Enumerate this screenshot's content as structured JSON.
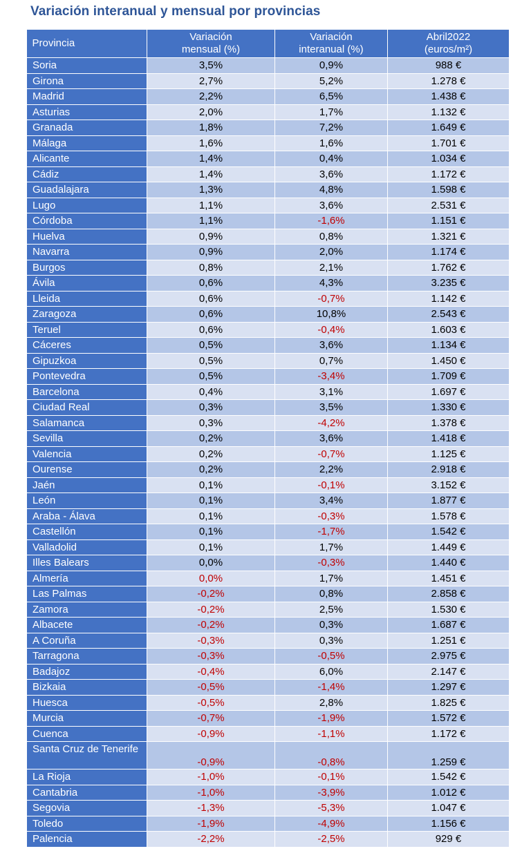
{
  "title": "Variación interanual y mensual por provincias",
  "colors": {
    "header": "#4472c4",
    "row_odd": "#b4c6e7",
    "row_even": "#d9e1f2",
    "negative": "#c00000",
    "title": "#2e5597"
  },
  "headers": {
    "provincia": "Provincia",
    "mensual_l1": "Variación",
    "mensual_l2": "mensual (%)",
    "interanual_l1": "Variación",
    "interanual_l2": "interanual (%)",
    "precio_l1": "Abril2022",
    "precio_l2": "(euros/m²)"
  },
  "rows": [
    {
      "provincia": "Soria",
      "mensual": "3,5%",
      "interanual": "0,9%",
      "precio": "988 €"
    },
    {
      "provincia": "Girona",
      "mensual": "2,7%",
      "interanual": "5,2%",
      "precio": "1.278 €"
    },
    {
      "provincia": "Madrid",
      "mensual": "2,2%",
      "interanual": "6,5%",
      "precio": "1.438 €"
    },
    {
      "provincia": "Asturias",
      "mensual": "2,0%",
      "interanual": "1,7%",
      "precio": "1.132 €"
    },
    {
      "provincia": "Granada",
      "mensual": "1,8%",
      "interanual": "7,2%",
      "precio": "1.649 €"
    },
    {
      "provincia": "Málaga",
      "mensual": "1,6%",
      "interanual": "1,6%",
      "precio": "1.701 €"
    },
    {
      "provincia": "Alicante",
      "mensual": "1,4%",
      "interanual": "0,4%",
      "precio": "1.034 €"
    },
    {
      "provincia": "Cádiz",
      "mensual": "1,4%",
      "interanual": "3,6%",
      "precio": "1.172 €"
    },
    {
      "provincia": "Guadalajara",
      "mensual": "1,3%",
      "interanual": "4,8%",
      "precio": "1.598 €"
    },
    {
      "provincia": "Lugo",
      "mensual": "1,1%",
      "interanual": "3,6%",
      "precio": "2.531 €"
    },
    {
      "provincia": "Córdoba",
      "mensual": "1,1%",
      "interanual": "-1,6%",
      "precio": "1.151 €"
    },
    {
      "provincia": "Huelva",
      "mensual": "0,9%",
      "interanual": "0,8%",
      "precio": "1.321 €"
    },
    {
      "provincia": "Navarra",
      "mensual": "0,9%",
      "interanual": "2,0%",
      "precio": "1.174 €"
    },
    {
      "provincia": "Burgos",
      "mensual": "0,8%",
      "interanual": "2,1%",
      "precio": "1.762 €"
    },
    {
      "provincia": "Ávila",
      "mensual": "0,6%",
      "interanual": "4,3%",
      "precio": "3.235 €"
    },
    {
      "provincia": "Lleida",
      "mensual": "0,6%",
      "interanual": "-0,7%",
      "precio": "1.142 €"
    },
    {
      "provincia": "Zaragoza",
      "mensual": "0,6%",
      "interanual": "10,8%",
      "precio": "2.543 €"
    },
    {
      "provincia": "Teruel",
      "mensual": "0,6%",
      "interanual": "-0,4%",
      "precio": "1.603 €"
    },
    {
      "provincia": "Cáceres",
      "mensual": "0,5%",
      "interanual": "3,6%",
      "precio": "1.134 €"
    },
    {
      "provincia": "Gipuzkoa",
      "mensual": "0,5%",
      "interanual": "0,7%",
      "precio": "1.450 €"
    },
    {
      "provincia": "Pontevedra",
      "mensual": "0,5%",
      "interanual": "-3,4%",
      "precio": "1.709 €"
    },
    {
      "provincia": "Barcelona",
      "mensual": "0,4%",
      "interanual": "3,1%",
      "precio": "1.697 €"
    },
    {
      "provincia": "Ciudad Real",
      "mensual": "0,3%",
      "interanual": "3,5%",
      "precio": "1.330 €"
    },
    {
      "provincia": "Salamanca",
      "mensual": "0,3%",
      "interanual": "-4,2%",
      "precio": "1.378 €"
    },
    {
      "provincia": "Sevilla",
      "mensual": "0,2%",
      "interanual": "3,6%",
      "precio": "1.418 €"
    },
    {
      "provincia": "Valencia",
      "mensual": "0,2%",
      "interanual": "-0,7%",
      "precio": "1.125 €"
    },
    {
      "provincia": "Ourense",
      "mensual": "0,2%",
      "interanual": "2,2%",
      "precio": "2.918 €"
    },
    {
      "provincia": "Jaén",
      "mensual": "0,1%",
      "interanual": "-0,1%",
      "precio": "3.152 €"
    },
    {
      "provincia": "León",
      "mensual": "0,1%",
      "interanual": "3,4%",
      "precio": "1.877 €"
    },
    {
      "provincia": "Araba - Álava",
      "mensual": "0,1%",
      "interanual": "-0,3%",
      "precio": "1.578 €"
    },
    {
      "provincia": "Castellón",
      "mensual": "0,1%",
      "interanual": "-1,7%",
      "precio": "1.542 €"
    },
    {
      "provincia": "Valladolid",
      "mensual": "0,1%",
      "interanual": "1,7%",
      "precio": "1.449 €"
    },
    {
      "provincia": "Illes Balears",
      "mensual": "0,0%",
      "interanual": "-0,3%",
      "precio": "1.440 €"
    },
    {
      "provincia": "Almería",
      "mensual": "0,0%",
      "interanual": "1,7%",
      "precio": "1.451 €",
      "mensual_red": true
    },
    {
      "provincia": "Las Palmas",
      "mensual": "-0,2%",
      "interanual": "0,8%",
      "precio": "2.858 €"
    },
    {
      "provincia": "Zamora",
      "mensual": "-0,2%",
      "interanual": "2,5%",
      "precio": "1.530 €"
    },
    {
      "provincia": "Albacete",
      "mensual": "-0,2%",
      "interanual": "0,3%",
      "precio": "1.687 €"
    },
    {
      "provincia": "A Coruña",
      "mensual": "-0,3%",
      "interanual": "0,3%",
      "precio": "1.251 €"
    },
    {
      "provincia": "Tarragona",
      "mensual": "-0,3%",
      "interanual": "-0,5%",
      "precio": "2.975 €"
    },
    {
      "provincia": "Badajoz",
      "mensual": "-0,4%",
      "interanual": "6,0%",
      "precio": "2.147 €"
    },
    {
      "provincia": "Bizkaia",
      "mensual": "-0,5%",
      "interanual": "-1,4%",
      "precio": "1.297 €"
    },
    {
      "provincia": "Huesca",
      "mensual": "-0,5%",
      "interanual": "2,8%",
      "precio": "1.825 €"
    },
    {
      "provincia": "Murcia",
      "mensual": "-0,7%",
      "interanual": "-1,9%",
      "precio": "1.572 €"
    },
    {
      "provincia": "Cuenca",
      "mensual": "-0,9%",
      "interanual": "-1,1%",
      "precio": "1.172 €"
    },
    {
      "provincia": "Santa Cruz de Tenerife",
      "mensual": "-0,9%",
      "interanual": "-0,8%",
      "precio": "1.259 €",
      "tall": true
    },
    {
      "provincia": "La Rioja",
      "mensual": "-1,0%",
      "interanual": "-0,1%",
      "precio": "1.542 €"
    },
    {
      "provincia": "Cantabria",
      "mensual": "-1,0%",
      "interanual": "-3,9%",
      "precio": "1.012 €"
    },
    {
      "provincia": "Segovia",
      "mensual": "-1,3%",
      "interanual": "-5,3%",
      "precio": "1.047 €"
    },
    {
      "provincia": "Toledo",
      "mensual": "-1,9%",
      "interanual": "-4,9%",
      "precio": "1.156 €"
    },
    {
      "provincia": "Palencia",
      "mensual": "-2,2%",
      "interanual": "-2,5%",
      "precio": "929 €"
    }
  ]
}
